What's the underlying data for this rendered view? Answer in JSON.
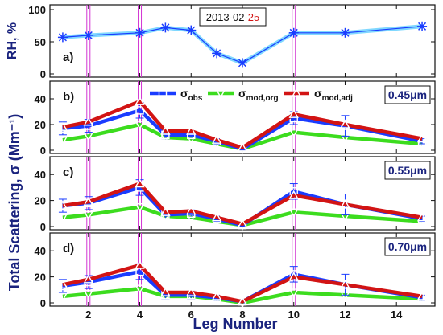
{
  "chart_data": {
    "type": "line",
    "date": {
      "prefix": "2013-02-",
      "suffix": "25"
    },
    "x": {
      "label": "Leg Number",
      "ticks": [
        2,
        4,
        6,
        8,
        10,
        12,
        14
      ],
      "range": [
        0.5,
        15.5
      ],
      "highlight_legs": [
        2,
        4,
        10
      ]
    },
    "shared_y_label": "Total Scattering, σ (Mm⁻¹)",
    "colors": {
      "rh": "#1a3cff",
      "rh_glow": "#80d8ff",
      "obs": "#1a3cff",
      "mod_org": "#3cdc1e",
      "mod_adj": "#d21414",
      "highlight": "#d233d2",
      "accent_date": "#d21414"
    },
    "legend": [
      {
        "key": "obs",
        "symbol": "square",
        "base": "σ",
        "sub": "obs"
      },
      {
        "key": "mod_org",
        "symbol": "triangle-down",
        "base": "σ",
        "sub": "mod,org"
      },
      {
        "key": "mod_adj",
        "symbol": "triangle-up",
        "base": "σ",
        "sub": "mod,adj"
      }
    ],
    "panels": [
      {
        "id": "a",
        "letter": "a)",
        "ylabel": "RH, %",
        "ylim": [
          0,
          100
        ],
        "yticks": [
          0,
          50,
          100
        ],
        "series": [
          {
            "key": "rh",
            "x": [
              1,
              2,
              4,
              5,
              6,
              7,
              8,
              10,
              12,
              15
            ],
            "y": [
              57,
              60,
              64,
              72,
              68,
              32,
              17,
              64,
              64,
              74
            ]
          }
        ]
      },
      {
        "id": "b",
        "letter": "b)",
        "wavelength": "0.45μm",
        "ylim": [
          0,
          50
        ],
        "yticks": [
          0,
          20,
          40
        ],
        "series": [
          {
            "key": "obs",
            "name": "σobs",
            "x": [
              1,
              2,
              4,
              5,
              6,
              7,
              8,
              10,
              12,
              15
            ],
            "y": [
              17,
              19,
              31,
              12,
              12,
              7,
              1,
              25,
              19,
              7
            ],
            "err": [
              5,
              5,
              6,
              3,
              3,
              2,
              1,
              5,
              8,
              2
            ]
          },
          {
            "key": "mod_org",
            "name": "σmod,org",
            "x": [
              1,
              2,
              4,
              5,
              6,
              7,
              8,
              10,
              12,
              15
            ],
            "y": [
              8,
              11,
              20,
              10,
              9,
              5,
              1,
              14,
              10,
              5
            ]
          },
          {
            "key": "mod_adj",
            "name": "σmod,adj",
            "x": [
              1,
              2,
              4,
              5,
              6,
              7,
              8,
              10,
              12,
              15
            ],
            "y": [
              18,
              22,
              38,
              15,
              15,
              8,
              2,
              28,
              20,
              9
            ]
          }
        ]
      },
      {
        "id": "c",
        "letter": "c)",
        "wavelength": "0.55μm",
        "ylim": [
          0,
          50
        ],
        "yticks": [
          0,
          20,
          40
        ],
        "series": [
          {
            "key": "obs",
            "name": "σobs",
            "x": [
              1,
              2,
              4,
              5,
              6,
              7,
              8,
              10,
              12,
              15
            ],
            "y": [
              16,
              18,
              30,
              9,
              10,
              6,
              1,
              27,
              17,
              6
            ],
            "err": [
              5,
              5,
              6,
              3,
              3,
              2,
              1,
              6,
              8,
              2
            ]
          },
          {
            "key": "mod_org",
            "name": "σmod,org",
            "x": [
              1,
              2,
              4,
              5,
              6,
              7,
              8,
              10,
              12,
              15
            ],
            "y": [
              7,
              9,
              15,
              8,
              7,
              4,
              1,
              11,
              8,
              4
            ]
          },
          {
            "key": "mod_adj",
            "name": "σmod,adj",
            "x": [
              1,
              2,
              4,
              5,
              6,
              7,
              8,
              10,
              12,
              15
            ],
            "y": [
              16,
              19,
              33,
              11,
              12,
              7,
              2,
              24,
              17,
              7
            ]
          }
        ]
      },
      {
        "id": "d",
        "letter": "d)",
        "wavelength": "0.70μm",
        "ylim": [
          0,
          50
        ],
        "yticks": [
          0,
          20,
          40
        ],
        "series": [
          {
            "key": "obs",
            "name": "σobs",
            "x": [
              1,
              2,
              4,
              5,
              6,
              7,
              8,
              10,
              12,
              15
            ],
            "y": [
              13,
              16,
              24,
              6,
              6,
              4,
              1,
              22,
              14,
              4
            ],
            "err": [
              5,
              5,
              6,
              3,
              3,
              2,
              1,
              6,
              8,
              2
            ]
          },
          {
            "key": "mod_org",
            "name": "σmod,org",
            "x": [
              1,
              2,
              4,
              5,
              6,
              7,
              8,
              10,
              12,
              15
            ],
            "y": [
              5,
              7,
              11,
              5,
              5,
              3,
              0,
              8,
              6,
              3
            ]
          },
          {
            "key": "mod_adj",
            "name": "σmod,adj",
            "x": [
              1,
              2,
              4,
              5,
              6,
              7,
              8,
              10,
              12,
              15
            ],
            "y": [
              14,
              18,
              29,
              8,
              8,
              5,
              1,
              20,
              14,
              5
            ]
          }
        ]
      }
    ]
  }
}
